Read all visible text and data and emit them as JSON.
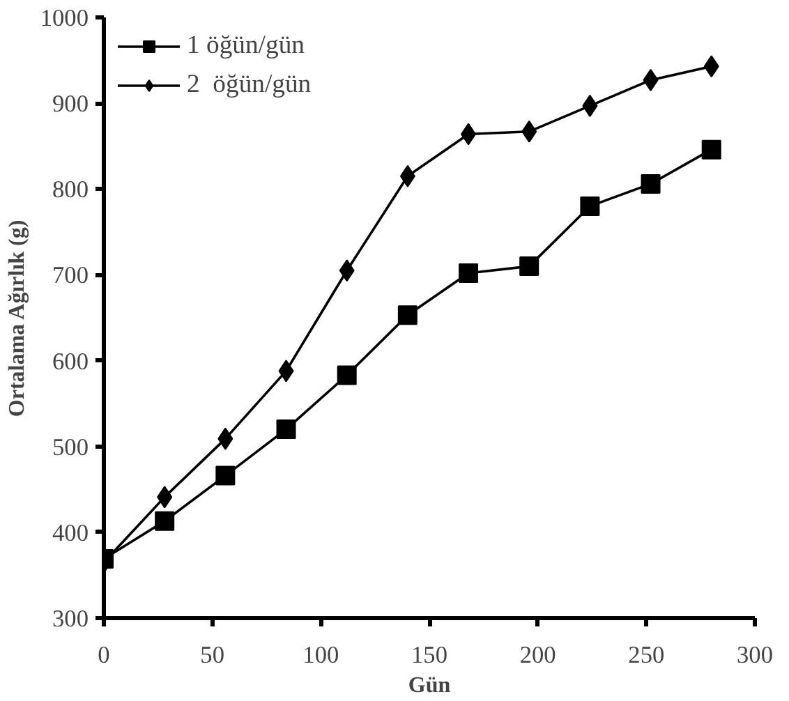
{
  "chart_data": {
    "type": "line",
    "xlabel": "Gün",
    "ylabel": "Ortalama Ağırlık (g)",
    "x": [
      0,
      28,
      56,
      84,
      112,
      140,
      168,
      196,
      224,
      252,
      280
    ],
    "series": [
      {
        "name": "1 öğün/gün",
        "color": "#000000",
        "marker": "square",
        "values": [
          369,
          413,
          466,
          520,
          583,
          653,
          702,
          710,
          780,
          806,
          846
        ]
      },
      {
        "name": "2  öğün/gün",
        "color": "#000000",
        "marker": "diamond",
        "values": [
          365,
          441,
          509,
          588,
          705,
          815,
          864,
          867,
          897,
          927,
          943
        ]
      }
    ],
    "xlim": [
      0,
      300
    ],
    "xticks": [
      0,
      50,
      100,
      150,
      200,
      250,
      300
    ],
    "ylim": [
      300,
      1000
    ],
    "yticks": [
      300,
      400,
      500,
      600,
      700,
      800,
      900,
      1000
    ],
    "grid": false,
    "legend": "top left",
    "line_style": "solid"
  }
}
